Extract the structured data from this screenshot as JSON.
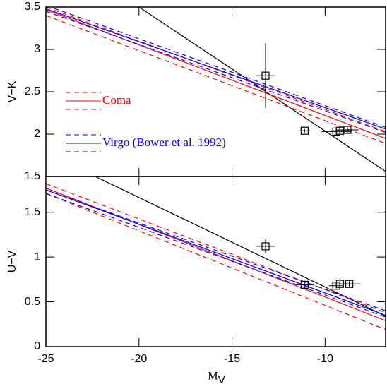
{
  "chart_data": [
    {
      "type": "line",
      "ylabel": "V−K",
      "xlim": [
        -25,
        -6.75
      ],
      "xticks": [
        -25,
        -20,
        -15,
        -10
      ],
      "ylim": [
        1.5,
        3.5
      ],
      "yticks": [
        1.5,
        2,
        2.5,
        3,
        3.5
      ],
      "legend": "left",
      "series": [
        {
          "color": "#000000",
          "dash": false,
          "x": [
            -20,
            -6.75
          ],
          "values": [
            3.5,
            1.56
          ]
        },
        {
          "color": "#ff0000",
          "dash": true,
          "x": [
            -25,
            -6.75
          ],
          "values": [
            3.5,
            2.03
          ]
        },
        {
          "name": "Coma",
          "color": "#ff0000",
          "dash": false,
          "x": [
            -25,
            -6.75
          ],
          "values": [
            3.47,
            1.95
          ]
        },
        {
          "color": "#ff0000",
          "dash": true,
          "x": [
            -25,
            -6.75
          ],
          "values": [
            3.4,
            1.89
          ]
        },
        {
          "color": "#0000ff",
          "dash": true,
          "x": [
            -25,
            -6.75
          ],
          "values": [
            3.52,
            2.08
          ]
        },
        {
          "name": "Virgo (Bower et al. 1992)",
          "color": "#0000ff",
          "dash": false,
          "x": [
            -25,
            -6.75
          ],
          "values": [
            3.48,
            2.06
          ]
        },
        {
          "color": "#0000ff",
          "dash": true,
          "x": [
            -25,
            -6.75
          ],
          "values": [
            3.45,
            2.02
          ]
        }
      ],
      "points": {
        "x": [
          -13.2,
          -11.1,
          -9.4,
          -9.2,
          -8.8
        ],
        "y": [
          2.69,
          2.04,
          2.03,
          2.04,
          2.05
        ],
        "xerr": [
          0.5,
          0.3,
          0.8,
          0.5,
          0.6
        ],
        "yerr": [
          0.38,
          0.02,
          0.05,
          0.13,
          0.03
        ]
      }
    },
    {
      "type": "line",
      "ylabel": "U−V",
      "xlabel": "M",
      "xlabel_sub": "V",
      "xlim": [
        -25,
        -6.75
      ],
      "xticks": [
        -25,
        -20,
        -15,
        -10
      ],
      "ylim": [
        0,
        1.9
      ],
      "yticks": [
        0,
        0.5,
        1,
        1.5
      ],
      "series": [
        {
          "color": "#000000",
          "dash": false,
          "x": [
            -22.35,
            -6.75
          ],
          "values": [
            1.9,
            0.34
          ]
        },
        {
          "color": "#ff0000",
          "dash": true,
          "x": [
            -25,
            -6.75
          ],
          "values": [
            1.82,
            0.38
          ]
        },
        {
          "color": "#ff0000",
          "dash": false,
          "x": [
            -25,
            -6.75
          ],
          "values": [
            1.77,
            0.29
          ]
        },
        {
          "color": "#ff0000",
          "dash": true,
          "x": [
            -25,
            -6.75
          ],
          "values": [
            1.71,
            0.19
          ]
        },
        {
          "color": "#0000ff",
          "dash": true,
          "x": [
            -25,
            -6.75
          ],
          "values": [
            1.75,
            0.4
          ]
        },
        {
          "color": "#0000ff",
          "dash": false,
          "x": [
            -25,
            -6.75
          ],
          "values": [
            1.75,
            0.35
          ]
        },
        {
          "color": "#0000ff",
          "dash": true,
          "x": [
            -25,
            -6.75
          ],
          "values": [
            1.71,
            0.33
          ]
        }
      ],
      "points": {
        "x": [
          -13.2,
          -11.1,
          -9.4,
          -9.2,
          -8.7
        ],
        "y": [
          1.12,
          0.69,
          0.68,
          0.7,
          0.7
        ],
        "xerr": [
          0.5,
          0.4,
          0.4,
          0.5,
          0.6
        ],
        "yerr": [
          0.08,
          0.03,
          0.03,
          0.06,
          0.03
        ]
      }
    }
  ]
}
